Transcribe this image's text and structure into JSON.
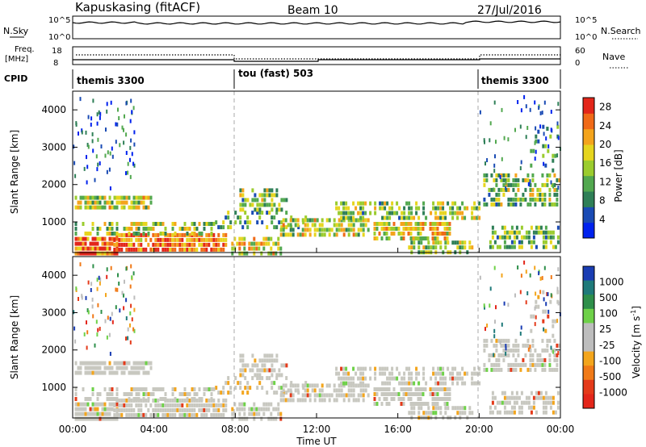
{
  "header": {
    "station": "Kapuskasing (fitACF)",
    "beam": "Beam 10",
    "date": "27/Jul/2016"
  },
  "top_panels": {
    "nsky": {
      "left_label": "N.Sky",
      "right_label": "N.Search",
      "ticks_left": [
        "10^5",
        "10^0"
      ],
      "ticks_right": [
        "10^5",
        "10^0"
      ]
    },
    "freq": {
      "left_label": "Freq.",
      "left_unit": "[MHz]",
      "right_label": "Nave",
      "ticks_left": [
        "18",
        "8"
      ],
      "ticks_right": [
        "60",
        "0"
      ]
    },
    "cpid": {
      "label": "CPID",
      "segments": [
        "themis 3300",
        "tou (fast) 503",
        "themis 3300"
      ]
    }
  },
  "colors": {
    "power_scale": [
      "#0022ee",
      "#1a4bb4",
      "#2f7f57",
      "#52a84f",
      "#9bcc2e",
      "#e6d51e",
      "#f4a41c",
      "#f06a18",
      "#e3261a"
    ],
    "velocity_scale": [
      "#1a3db3",
      "#1f7a7a",
      "#2e8f4a",
      "#6ed148",
      "#bdbdbd",
      "#bdbdbd",
      "#f3a51c",
      "#f07a18",
      "#e43a1a",
      "#e3261a"
    ],
    "velocity_gray": "#c8c8c0"
  },
  "chart_data": [
    {
      "type": "heatmap",
      "title": "",
      "xlabel": "Time UT",
      "ylabel": "Slant Range [km]",
      "x_ticks": [
        "00:00",
        "04:00",
        "08:00",
        "12:00",
        "16:00",
        "20:00",
        "00:00"
      ],
      "xlim_hours": [
        0,
        24
      ],
      "y_ticks": [
        "1000",
        "2000",
        "3000",
        "4000"
      ],
      "ylim": [
        180,
        4500
      ],
      "colorbar": {
        "label": "Power [dB]",
        "ticks": [
          "4",
          "8",
          "12",
          "16",
          "20",
          "24",
          "28"
        ],
        "range": [
          0,
          30
        ]
      },
      "grid": false
    },
    {
      "type": "heatmap",
      "title": "",
      "xlabel": "Time UT",
      "ylabel": "Slant Range [km]",
      "x_ticks": [
        "00:00",
        "04:00",
        "08:00",
        "12:00",
        "16:00",
        "20:00",
        "00:00"
      ],
      "xlim_hours": [
        0,
        24
      ],
      "y_ticks": [
        "1000",
        "2000",
        "3000",
        "4000"
      ],
      "ylim": [
        180,
        4500
      ],
      "colorbar": {
        "label": "Velocity [m s^-1]",
        "ticks": [
          "1000",
          "500",
          "100",
          "25",
          "-25",
          "-100",
          "-500",
          "-1000"
        ]
      },
      "grid": false
    }
  ],
  "ui_labels": {
    "x_axis_label": "Time UT",
    "y_axis_label": "Slant Range [km]",
    "power_label": "Power [dB]",
    "velocity_label": "Velocity [m s",
    "velocity_exp": "-1",
    "velocity_close": "]"
  }
}
